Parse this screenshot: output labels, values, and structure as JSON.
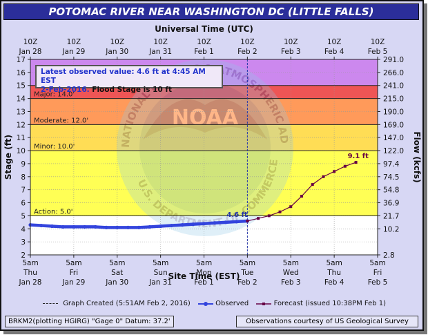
{
  "window": {
    "title": "POTOMAC RIVER NEAR WASHINGTON DC (LITTLE FALLS)"
  },
  "observed_box": {
    "line1": "Latest observed value: 4.6 ft at 4:45 AM EST",
    "date": "2-Feb-2016.",
    "flood_stage": "Flood Stage is 10 ft"
  },
  "legend": {
    "created": "Graph Created (5:51AM Feb 2, 2016)",
    "observed": "Observed",
    "forecast": "Forecast (issued 10:38PM Feb 1)"
  },
  "footer": {
    "station": "BRKM2(plotting HGIRG) \"Gage 0\" Datum: 37.2'",
    "credit": "Observations courtesy of US Geological Survey"
  },
  "watermark": {
    "text": "NOAA",
    "ring_text_left": "NATIONAL OCEANIC",
    "ring_text_right": "ATMOSPHERIC ADMINISTRATION",
    "ring_text_bottom": "U.S. DEPARTMENT OF COMMERCE"
  },
  "colors": {
    "major": "#cc88ee",
    "major_band": "#ee5555",
    "moderate": "#ff9a5a",
    "minor": "#ffdd55",
    "action": "#ffff44",
    "normal": "#ffffff",
    "observed": "#3344dd",
    "forecast": "#660044"
  },
  "chart_data": {
    "type": "line",
    "title": "POTOMAC RIVER NEAR WASHINGTON DC (LITTLE FALLS)",
    "x_top_title": "Universal Time (UTC)",
    "xlabel": "Site Time (EST)",
    "ylabel": "Stage (ft)",
    "y2label": "Flow (kcfs)",
    "ylim": [
      2,
      17
    ],
    "x_range_hours_from_jan28_5am": [
      0,
      192
    ],
    "top_ticks": [
      {
        "l1": "10Z",
        "l2": "Jan 28"
      },
      {
        "l1": "10Z",
        "l2": "Jan 29"
      },
      {
        "l1": "10Z",
        "l2": "Jan 30"
      },
      {
        "l1": "10Z",
        "l2": "Jan 31"
      },
      {
        "l1": "10Z",
        "l2": "Feb 1"
      },
      {
        "l1": "10Z",
        "l2": "Feb 2"
      },
      {
        "l1": "10Z",
        "l2": "Feb 3"
      },
      {
        "l1": "10Z",
        "l2": "Feb 4"
      },
      {
        "l1": "10Z",
        "l2": "Feb 5"
      }
    ],
    "bottom_ticks": [
      {
        "l1": "5am",
        "l2": "Thu",
        "l3": "Jan 28"
      },
      {
        "l1": "5am",
        "l2": "Fri",
        "l3": "Jan 29"
      },
      {
        "l1": "5am",
        "l2": "Sat",
        "l3": "Jan 30"
      },
      {
        "l1": "5am",
        "l2": "Sun",
        "l3": "Jan 31"
      },
      {
        "l1": "5am",
        "l2": "Mon",
        "l3": "Feb 1"
      },
      {
        "l1": "5am",
        "l2": "Tue",
        "l3": "Feb 2"
      },
      {
        "l1": "5am",
        "l2": "Wed",
        "l3": "Feb 3"
      },
      {
        "l1": "5am",
        "l2": "Thu",
        "l3": "Feb 4"
      },
      {
        "l1": "5am",
        "l2": "Fri",
        "l3": "Feb 5"
      }
    ],
    "y_ticks": [
      2,
      3,
      4,
      5,
      6,
      7,
      8,
      9,
      10,
      11,
      12,
      13,
      14,
      15,
      16,
      17
    ],
    "flow_ticks": [
      {
        "stage": 2,
        "label": "2.8"
      },
      {
        "stage": 4,
        "label": "10.2"
      },
      {
        "stage": 5,
        "label": "21.7"
      },
      {
        "stage": 6,
        "label": "36.9"
      },
      {
        "stage": 7,
        "label": "54.8"
      },
      {
        "stage": 8,
        "label": "74.5"
      },
      {
        "stage": 9,
        "label": "97.4"
      },
      {
        "stage": 10,
        "label": "122.0"
      },
      {
        "stage": 11,
        "label": "147.0"
      },
      {
        "stage": 12,
        "label": "169.0"
      },
      {
        "stage": 13,
        "label": "190.0"
      },
      {
        "stage": 14,
        "label": "215.0"
      },
      {
        "stage": 15,
        "label": "241.0"
      },
      {
        "stage": 16,
        "label": "266.0"
      },
      {
        "stage": 17,
        "label": "291.0"
      }
    ],
    "flood_categories": [
      {
        "name": "Major",
        "label": "Major: 14.0'",
        "from": 14,
        "to": 17
      },
      {
        "name": "Moderate",
        "label": "Moderate: 12.0'",
        "from": 12,
        "to": 14
      },
      {
        "name": "Minor",
        "label": "Minor: 10.0'",
        "from": 10,
        "to": 12
      },
      {
        "name": "Action",
        "label": "Action: 5.0'",
        "from": 5,
        "to": 10
      }
    ],
    "graph_created_hour": 120,
    "series": [
      {
        "name": "Observed",
        "x": [
          0,
          6,
          12,
          18,
          24,
          30,
          36,
          42,
          48,
          54,
          60,
          66,
          72,
          78,
          84,
          90,
          96,
          102,
          108,
          114,
          120
        ],
        "y": [
          4.3,
          4.25,
          4.2,
          4.15,
          4.15,
          4.15,
          4.15,
          4.1,
          4.1,
          4.1,
          4.1,
          4.15,
          4.2,
          4.25,
          4.3,
          4.35,
          4.4,
          4.45,
          4.5,
          4.55,
          4.6
        ],
        "label": "4.6 ft"
      },
      {
        "name": "Forecast",
        "x": [
          120,
          126,
          132,
          138,
          144,
          150,
          156,
          162,
          168,
          174,
          180
        ],
        "y": [
          4.6,
          4.8,
          5.0,
          5.3,
          5.7,
          6.5,
          7.4,
          8.0,
          8.4,
          8.8,
          9.1
        ],
        "label": "9.1 ft"
      }
    ]
  }
}
